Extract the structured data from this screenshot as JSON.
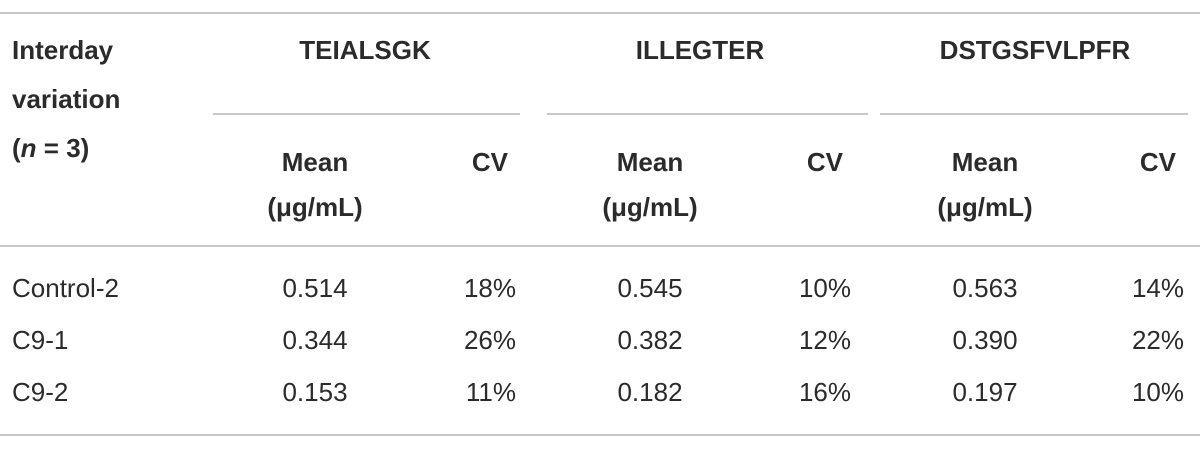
{
  "table": {
    "corner": {
      "lines": [
        "Interday",
        "variation"
      ],
      "open": "(",
      "italic": "n",
      "close": " = 3)"
    },
    "groups": [
      {
        "name": "TEIALSGK",
        "mean": "Mean (μg/mL)",
        "cv": "CV"
      },
      {
        "name": "ILLEGTER",
        "mean": "Mean (μg/mL)",
        "cv": "CV"
      },
      {
        "name": "DSTGSFVLPFR",
        "mean": "Mean (μg/mL)",
        "cv": "CV"
      }
    ],
    "rows": [
      [
        "Control-2",
        "0.514",
        "18%",
        "0.545",
        "10%",
        "0.563",
        "14%"
      ],
      [
        "C9-1",
        "0.344",
        "26%",
        "0.382",
        "12%",
        "0.390",
        "22%"
      ],
      [
        "C9-2",
        "0.153",
        "11%",
        "0.182",
        "16%",
        "0.197",
        "10%"
      ]
    ]
  }
}
